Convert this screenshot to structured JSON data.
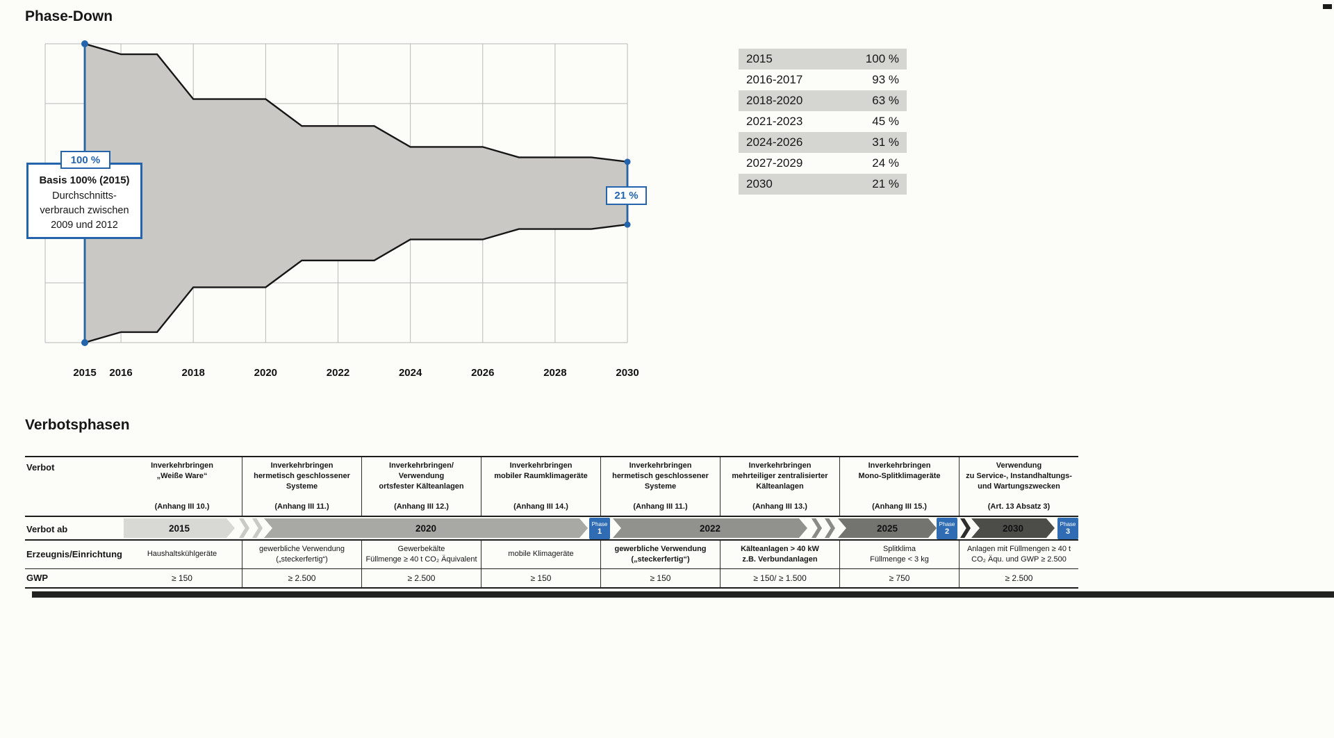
{
  "page": {
    "title": "Phase-Down",
    "section2_title": "Verbotsphasen"
  },
  "chart_data": {
    "type": "area",
    "title": "Phase-Down",
    "description": "Symmetric funnel area showing the HFC phase-down quota per period, from 100 % in 2015 to 21 % in 2030",
    "x_ticks": [
      2015,
      2016,
      2018,
      2020,
      2022,
      2024,
      2026,
      2028,
      2030
    ],
    "x_range": [
      2015,
      2030
    ],
    "y_unit": "%",
    "grid": true,
    "steps": [
      {
        "from": 2015,
        "to": 2015,
        "pct": 100
      },
      {
        "from": 2016,
        "to": 2017,
        "pct": 93
      },
      {
        "from": 2018,
        "to": 2020,
        "pct": 63
      },
      {
        "from": 2021,
        "to": 2023,
        "pct": 45
      },
      {
        "from": 2024,
        "to": 2026,
        "pct": 31
      },
      {
        "from": 2027,
        "to": 2029,
        "pct": 24
      },
      {
        "from": 2030,
        "to": 2030,
        "pct": 21
      }
    ],
    "annotations": {
      "start_label": "100 %",
      "end_label": "21 %",
      "basis_title": "Basis 100% (2015)",
      "basis_body": "Durchschnitts-\nverbrauch zwischen\n2009 und 2012"
    },
    "colors": {
      "fill": "#c9c8c4",
      "stroke": "#161616",
      "accent": "#2464ad",
      "grid": "#b9b9b6"
    }
  },
  "percent_table": {
    "rows": [
      {
        "period": "2015",
        "value": "100 %"
      },
      {
        "period": "2016-2017",
        "value": "93 %"
      },
      {
        "period": "2018-2020",
        "value": "63 %"
      },
      {
        "period": "2021-2023",
        "value": "45 %"
      },
      {
        "period": "2024-2026",
        "value": "31 %"
      },
      {
        "period": "2027-2029",
        "value": "24 %"
      },
      {
        "period": "2030",
        "value": "21 %"
      }
    ]
  },
  "verbotsphasen": {
    "row_labels": {
      "verbot": "Verbot",
      "verbot_ab": "Verbot ab",
      "erzeugnis": "Erzeugnis/Einrichtung",
      "gwp": "GWP"
    },
    "columns": [
      {
        "verbot": "Inverkehrbringen\n„Weiße Ware“",
        "anhang": "(Anhang III 10.)",
        "erzeugnis": "Haushaltskühlgeräte",
        "erzeugnis_bold": false,
        "gwp": "≥ 150"
      },
      {
        "verbot": "Inverkehrbringen\nhermetisch geschlossener\nSysteme",
        "anhang": "(Anhang III 11.)",
        "erzeugnis": "gewerbliche Verwendung\n(„steckerfertig“)",
        "erzeugnis_bold": false,
        "gwp": "≥ 2.500"
      },
      {
        "verbot": "Inverkehrbringen/\nVerwendung\nortsfester Kälteanlagen",
        "anhang": "(Anhang III 12.)",
        "erzeugnis": "Gewerbekälte\nFüllmenge ≥ 40 t CO₂ Äquivalent",
        "erzeugnis_bold": false,
        "gwp": "≥ 2.500"
      },
      {
        "verbot": "Inverkehrbringen\nmobiler Raumklimageräte",
        "anhang": "(Anhang III 14.)",
        "erzeugnis": "mobile Klimageräte",
        "erzeugnis_bold": false,
        "gwp": "≥ 150"
      },
      {
        "verbot": "Inverkehrbringen\nhermetisch geschlossener\nSysteme",
        "anhang": "(Anhang III 11.)",
        "erzeugnis": "gewerbliche Verwendung\n(„steckerfertig“)",
        "erzeugnis_bold": true,
        "gwp": "≥ 150"
      },
      {
        "verbot": "Inverkehrbringen\nmehrteiliger zentralisierter\nKälteanlagen",
        "anhang": "(Anhang III 13.)",
        "erzeugnis": "Kälteanlagen > 40 kW\nz.B. Verbundanlagen",
        "erzeugnis_bold": true,
        "gwp": "≥ 150/ ≥ 1.500"
      },
      {
        "verbot": "Inverkehrbringen\nMono-Splitklimageräte",
        "anhang": "(Anhang III 15.)",
        "erzeugnis": "Splitklima\nFüllmenge < 3 kg",
        "erzeugnis_bold": false,
        "gwp": "≥ 750"
      },
      {
        "verbot": "Verwendung\nzu Service-, Instandhaltungs-\nund Wartungszwecken",
        "anhang": "(Art. 13 Absatz 3)",
        "erzeugnis": "Anlagen mit Füllmengen ≥ 40 t\nCO₂ Äqu. und GWP ≥ 2.500",
        "erzeugnis_bold": false,
        "gwp": "≥ 2.500"
      }
    ],
    "timeline": {
      "segments": [
        {
          "label": "2015",
          "color": "#d8d8d4"
        },
        {
          "label": "2020",
          "color": "#a8a8a5"
        },
        {
          "label": "2022",
          "color": "#91918e"
        },
        {
          "label": "2025",
          "color": "#737370"
        },
        {
          "label": "2030",
          "color": "#4c4c49"
        }
      ],
      "phases": [
        {
          "word": "Phase",
          "num": "1"
        },
        {
          "word": "Phase",
          "num": "2"
        },
        {
          "word": "Phase",
          "num": "3"
        }
      ],
      "phase_color": "#2f6cb3"
    }
  }
}
